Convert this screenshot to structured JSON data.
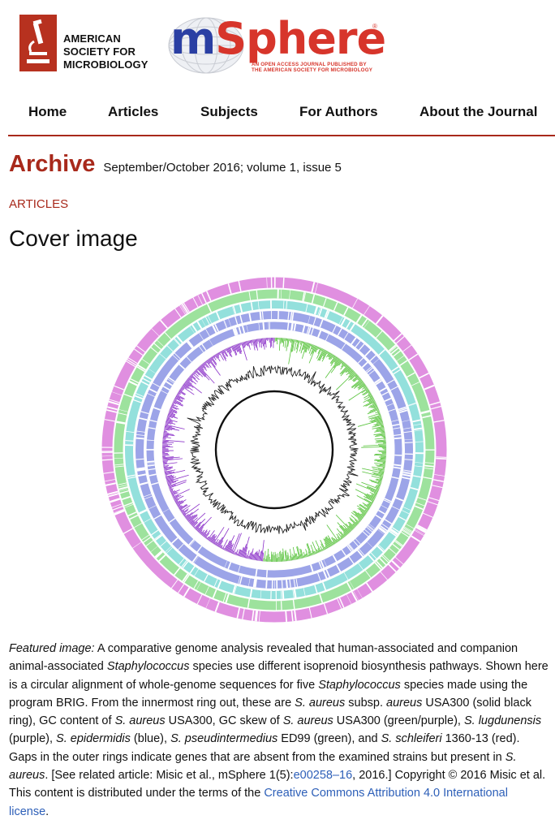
{
  "header": {
    "asm_lines": [
      "AMERICAN",
      "SOCIETY FOR",
      "MICROBIOLOGY"
    ],
    "journal_logo": {
      "m": "m",
      "rest": "Sphere",
      "reg": "®",
      "tagline_lines": [
        "AN OPEN ACCESS JOURNAL PUBLISHED BY",
        "THE AMERICAN SOCIETY FOR MICROBIOLOGY"
      ]
    }
  },
  "nav": {
    "items": [
      "Home",
      "Articles",
      "Subjects",
      "For Authors",
      "About the Journal"
    ]
  },
  "archive": {
    "title": "Archive",
    "meta": "September/October 2016; volume 1, issue 5"
  },
  "section_label": "ARTICLES",
  "page_title": "Cover image",
  "colors": {
    "accent": "#a8291b",
    "link": "#2d5fb8",
    "ring_pink": "#d66ad6",
    "ring_green": "#7cd87c",
    "ring_cyan": "#6fd6d0",
    "ring_blue": "#7b85e0",
    "skew_purple": "#8a2fc8",
    "skew_green": "#56c23a",
    "gc_black": "#222222"
  },
  "icons": {
    "asm": "microscope-icon",
    "globe": "globe-icon"
  },
  "caption": {
    "p1": "Featured image:",
    "p2": " A comparative genome analysis revealed that human-associated and companion animal-associated ",
    "p3": "Staphylococcus",
    "p4": " species use different isoprenoid biosynthesis pathways. Shown here is a circular alignment of whole-genome sequences for five ",
    "p5": "Staphylococcus",
    "p6": " species made using the program BRIG. From the innermost ring out, these are ",
    "p7": "S. aureus",
    "p8": " subsp. ",
    "p9": "aureus",
    "p10": " USA300 (solid black ring), GC content of ",
    "p11": "S. aureus",
    "p12": " USA300, GC skew of ",
    "p13": "S. aureus",
    "p14": " USA300 (green/purple), ",
    "p15": "S. lugdunensis",
    "p16": " (purple), ",
    "p17": "S. epidermidis",
    "p18": " (blue), ",
    "p19": "S. pseudintermedius",
    "p20": " ED99 (green), and ",
    "p21": "S. schleiferi",
    "p22": " 1360-13 (red). Gaps in the outer rings indicate genes that are absent from the examined strains but present in ",
    "p23": "S. aureus",
    "p24": ". [See related article: Misic et al., mSphere 1(5):",
    "link1": "e00258–16",
    "p25": ", 2016.] Copyright © 2016 Misic et al. This content is distributed under the terms of the ",
    "link2": "Creative Commons Attribution 4.0 International license",
    "p26": "."
  }
}
